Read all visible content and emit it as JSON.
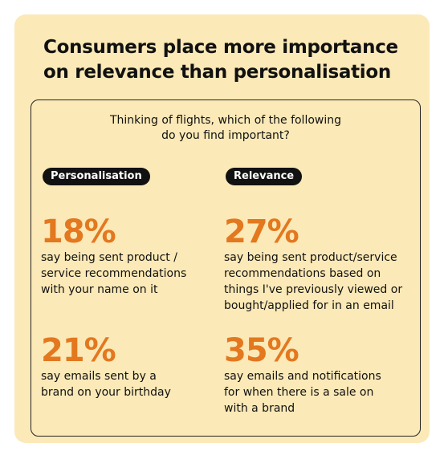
{
  "headline": "Consumers place more importance on relevance than personalisation",
  "question": {
    "line1": "Thinking of flights, which of the following",
    "line2": "do you find important?"
  },
  "personalisation": {
    "label": "Personalisation",
    "stats": [
      {
        "value": "18%",
        "lines": [
          "say being sent product /",
          "service recommendations",
          "with your name on it"
        ]
      },
      {
        "value": "21%",
        "lines": [
          "say emails sent by a",
          "brand on your birthday"
        ]
      }
    ]
  },
  "relevance": {
    "label": "Relevance",
    "stats": [
      {
        "value": "27%",
        "lines": [
          "say being sent product/service",
          "recommendations based on",
          "things I've previously viewed or",
          "bought/applied for in an email"
        ]
      },
      {
        "value": "35%",
        "lines": [
          "say emails and notifications",
          "for when there is a sale on",
          "with a brand"
        ]
      }
    ]
  },
  "colors": {
    "background": "#fbe9b7",
    "accent": "#e3781f",
    "pill": "#111111"
  }
}
